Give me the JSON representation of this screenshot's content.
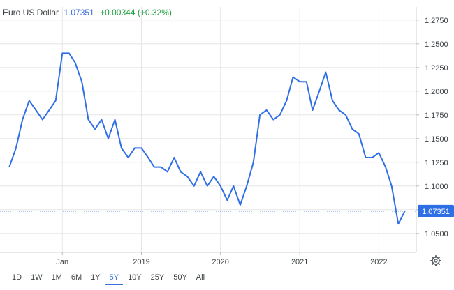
{
  "header": {
    "name": "Euro US Dollar",
    "price": "1.07351",
    "change": "+0.00344 (+0.32%)"
  },
  "colors": {
    "line": "#2f6fe6",
    "last_badge": "#2f6fe6",
    "grid": "#e6e6e6",
    "positive": "#1e9e3e"
  },
  "ranges": [
    "1D",
    "1W",
    "1M",
    "6M",
    "1Y",
    "5Y",
    "10Y",
    "25Y",
    "50Y",
    "All"
  ],
  "active_range": "5Y",
  "settings_icon": "gear-icon",
  "chart_data": {
    "type": "line",
    "title": "",
    "xlabel": "",
    "ylabel": "",
    "grid": true,
    "ylim": [
      1.03,
      1.28
    ],
    "y_ticks": [
      "1.2750",
      "1.2500",
      "1.2250",
      "1.2000",
      "1.1750",
      "1.1500",
      "1.1250",
      "1.1000",
      "1.0750",
      "1.0500"
    ],
    "x_ticks": [
      "Jan",
      "2019",
      "2020",
      "2021",
      "2022"
    ],
    "last_value_label": "1.07351",
    "series": [
      {
        "x": [
          "2017-05-01",
          "2017-06-01",
          "2017-07-01",
          "2017-08-01",
          "2017-09-01",
          "2017-10-01",
          "2017-11-01",
          "2017-12-01",
          "2018-01-01",
          "2018-02-01",
          "2018-03-01",
          "2018-04-01",
          "2018-05-01",
          "2018-06-01",
          "2018-07-01",
          "2018-08-01",
          "2018-09-01",
          "2018-10-01",
          "2018-11-01",
          "2018-12-01",
          "2019-01-01",
          "2019-02-01",
          "2019-03-01",
          "2019-04-01",
          "2019-05-01",
          "2019-06-01",
          "2019-07-01",
          "2019-08-01",
          "2019-09-01",
          "2019-10-01",
          "2019-11-01",
          "2019-12-01",
          "2020-01-01",
          "2020-02-01",
          "2020-03-01",
          "2020-04-01",
          "2020-05-01",
          "2020-06-01",
          "2020-07-01",
          "2020-08-01",
          "2020-09-01",
          "2020-10-01",
          "2020-11-01",
          "2020-12-01",
          "2021-01-01",
          "2021-02-01",
          "2021-03-01",
          "2021-04-01",
          "2021-05-01",
          "2021-06-01",
          "2021-07-01",
          "2021-08-01",
          "2021-09-01",
          "2021-10-01",
          "2021-11-01",
          "2021-12-01",
          "2022-01-01",
          "2022-02-01",
          "2022-03-01",
          "2022-04-01",
          "2022-05-01"
        ],
        "values": [
          1.12,
          1.14,
          1.17,
          1.19,
          1.18,
          1.17,
          1.18,
          1.19,
          1.24,
          1.24,
          1.23,
          1.21,
          1.17,
          1.16,
          1.17,
          1.15,
          1.17,
          1.14,
          1.13,
          1.14,
          1.14,
          1.13,
          1.12,
          1.12,
          1.115,
          1.13,
          1.115,
          1.11,
          1.1,
          1.115,
          1.1,
          1.11,
          1.1,
          1.085,
          1.1,
          1.08,
          1.1,
          1.125,
          1.175,
          1.18,
          1.17,
          1.175,
          1.19,
          1.215,
          1.21,
          1.21,
          1.18,
          1.2,
          1.22,
          1.19,
          1.18,
          1.175,
          1.16,
          1.155,
          1.13,
          1.13,
          1.135,
          1.12,
          1.1,
          1.06,
          1.07351
        ]
      }
    ]
  }
}
